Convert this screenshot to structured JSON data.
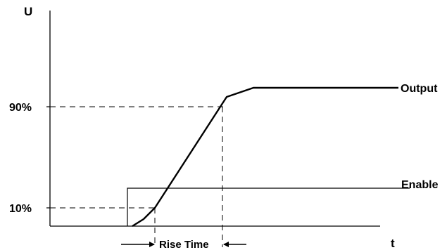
{
  "diagram": {
    "y_axis_label": "U",
    "x_axis_label": "t",
    "level_90_label": "90%",
    "level_10_label": "10%",
    "output_label": "Output",
    "enable_label": "Enable",
    "rise_time_label": "Rise Time"
  },
  "colors": {
    "line": "#000000",
    "background": "#ffffff"
  }
}
